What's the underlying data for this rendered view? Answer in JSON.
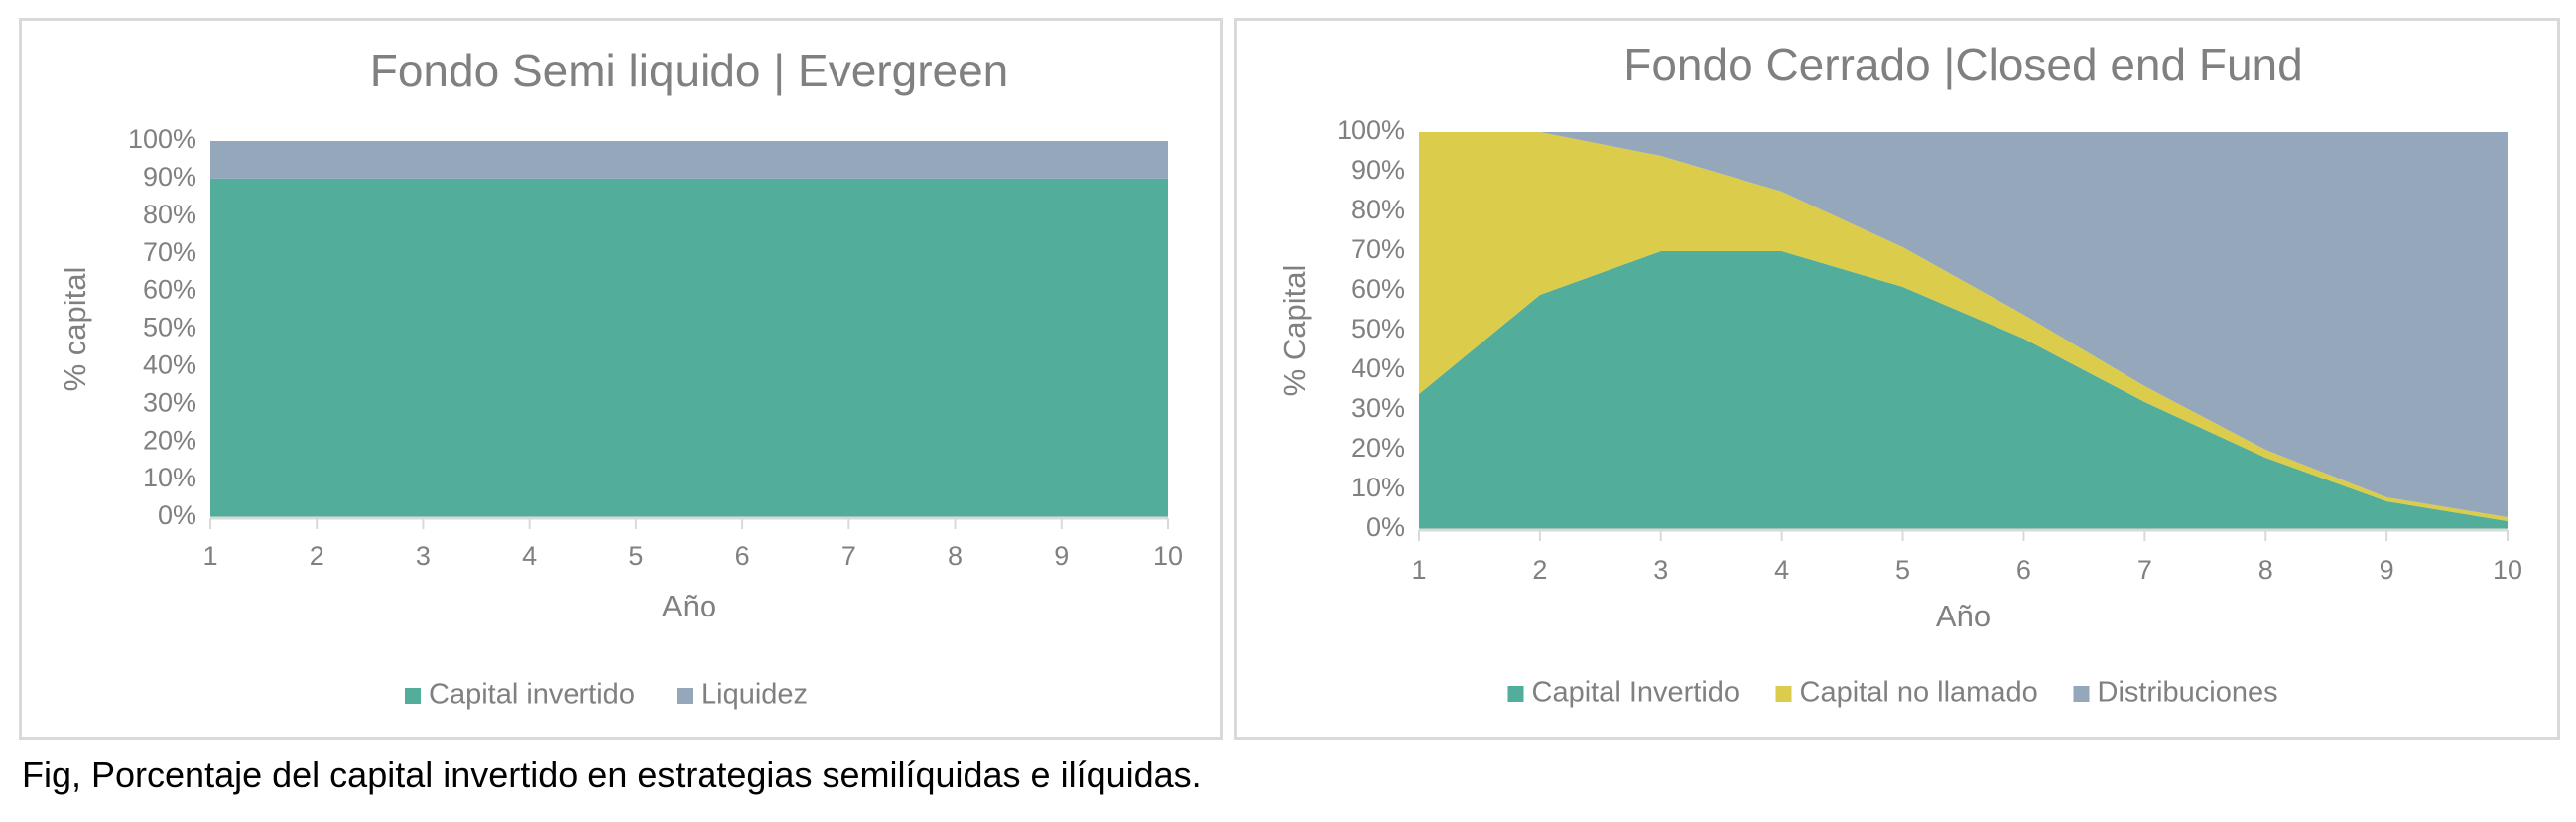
{
  "colors": {
    "invested": "#52ad9a",
    "liquidity": "#95a7bb",
    "uncalled": "#dbcd4b",
    "distributions": "#95a7bb",
    "text": "#808080",
    "axis": "#d9d9d9",
    "border": "#d9d9d9"
  },
  "chart_data": [
    {
      "type": "area",
      "stacked": true,
      "title": "Fondo Semi liquido | Evergreen",
      "xlabel": "Año",
      "ylabel": "% capital",
      "x": [
        1,
        2,
        3,
        4,
        5,
        6,
        7,
        8,
        9,
        10
      ],
      "ylim": [
        0,
        100
      ],
      "yticks": [
        "0%",
        "10%",
        "20%",
        "30%",
        "40%",
        "50%",
        "60%",
        "70%",
        "80%",
        "90%",
        "100%"
      ],
      "grid": false,
      "legend": "bottom",
      "series": [
        {
          "name": "Capital invertido",
          "color": "#52ad9a",
          "values": [
            90,
            90,
            90,
            90,
            90,
            90,
            90,
            90,
            90,
            90
          ]
        },
        {
          "name": "Liquidez",
          "color": "#95a7bb",
          "values": [
            10,
            10,
            10,
            10,
            10,
            10,
            10,
            10,
            10,
            10
          ]
        }
      ]
    },
    {
      "type": "area",
      "stacked": true,
      "title": "Fondo Cerrado |Closed end Fund",
      "xlabel": "Año",
      "ylabel": "% Capital",
      "x": [
        1,
        2,
        3,
        4,
        5,
        6,
        7,
        8,
        9,
        10
      ],
      "ylim": [
        0,
        100
      ],
      "yticks": [
        "0%",
        "10%",
        "20%",
        "30%",
        "40%",
        "50%",
        "60%",
        "70%",
        "80%",
        "90%",
        "100%"
      ],
      "grid": false,
      "legend": "bottom",
      "series": [
        {
          "name": "Capital Invertido",
          "color": "#52ad9a",
          "values": [
            34,
            59,
            70,
            70,
            61,
            48,
            32,
            18,
            7,
            2
          ]
        },
        {
          "name": "Capital no llamado",
          "color": "#dbcd4b",
          "values": [
            66,
            41,
            24,
            15,
            10,
            6,
            4,
            2,
            1,
            1
          ]
        },
        {
          "name": "Distribuciones",
          "color": "#95a7bb",
          "values": [
            0,
            0,
            6,
            15,
            29,
            46,
            64,
            80,
            92,
            97
          ]
        }
      ]
    }
  ],
  "caption": "Fig, Porcentaje del capital invertido en estrategias semilíquidas e ilíquidas."
}
